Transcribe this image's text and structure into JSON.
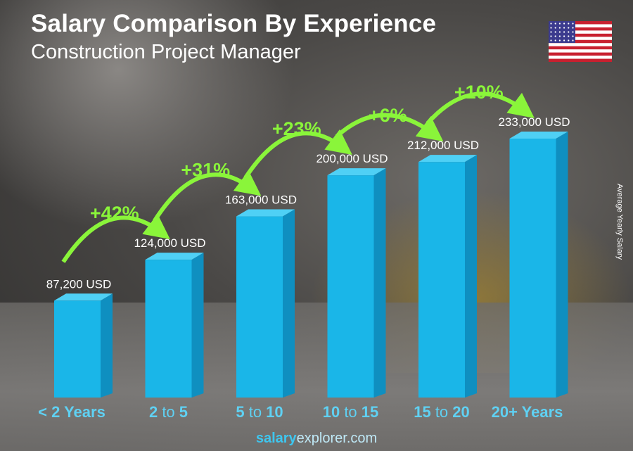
{
  "title": "Salary Comparison By Experience",
  "subtitle": "Construction Project Manager",
  "footer": {
    "brand_bold": "salary",
    "brand_rest": "explorer",
    "brand_tld": ".com"
  },
  "flag_icon": "us-flag-icon",
  "colors": {
    "bar": "#1ab6e8",
    "bar_side": "#0f8fc0",
    "bar_top": "#4fd0f5",
    "pct": "#8af53a",
    "category": "#5fd1f3",
    "label": "#ffffff"
  },
  "chart_data": {
    "type": "bar",
    "title": "Salary Comparison By Experience",
    "subtitle": "Construction Project Manager",
    "ylabel": "Average Yearly Salary",
    "xlabel": "",
    "categories": [
      {
        "parts": [
          [
            "b",
            "< 2 Years"
          ]
        ]
      },
      {
        "parts": [
          [
            "b",
            "2"
          ],
          [
            "n",
            " to "
          ],
          [
            "b",
            "5"
          ]
        ]
      },
      {
        "parts": [
          [
            "b",
            "5"
          ],
          [
            "n",
            " to "
          ],
          [
            "b",
            "10"
          ]
        ]
      },
      {
        "parts": [
          [
            "b",
            "10"
          ],
          [
            "n",
            " to "
          ],
          [
            "b",
            "15"
          ]
        ]
      },
      {
        "parts": [
          [
            "b",
            "15"
          ],
          [
            "n",
            " to "
          ],
          [
            "b",
            "20"
          ]
        ]
      },
      {
        "parts": [
          [
            "b",
            "20+ Years"
          ]
        ]
      }
    ],
    "category_labels": [
      "< 2 Years",
      "2 to 5",
      "5 to 10",
      "10 to 15",
      "15 to 20",
      "20+ Years"
    ],
    "values": [
      87200,
      124000,
      163000,
      200000,
      212000,
      233000
    ],
    "value_labels": [
      "87,200 USD",
      "124,000 USD",
      "163,000 USD",
      "200,000 USD",
      "212,000 USD",
      "233,000 USD"
    ],
    "changes": [
      "+42%",
      "+31%",
      "+23%",
      "+6%",
      "+10%"
    ],
    "ylim": [
      0,
      233000
    ],
    "grid": false
  }
}
